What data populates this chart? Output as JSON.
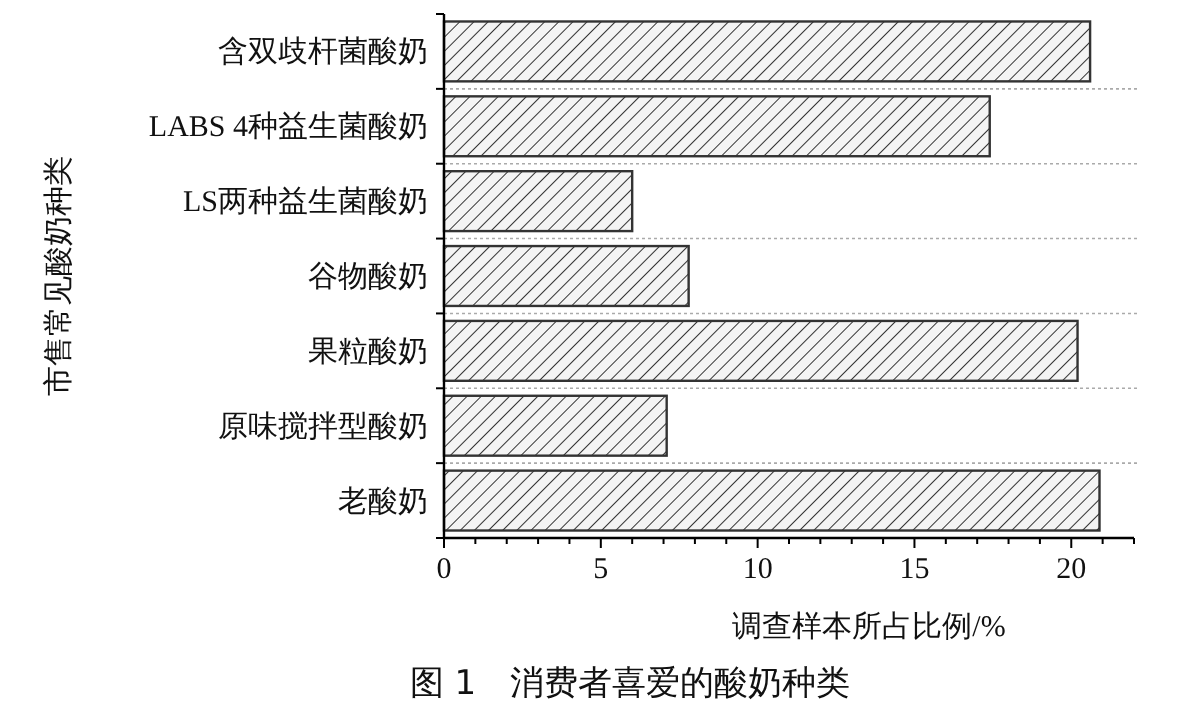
{
  "chart_data": {
    "type": "bar",
    "orientation": "horizontal",
    "title": "图 1　消费者喜爱的酸奶种类",
    "xlabel": "调查样本所占比例/%",
    "ylabel": "市售常见酸奶种类",
    "categories": [
      "含双歧杆菌酸奶",
      "LABS 4种益生菌酸奶",
      "LS两种益生菌酸奶",
      "谷物酸奶",
      "果粒酸奶",
      "原味搅拌型酸奶",
      "老酸奶"
    ],
    "values": [
      20.6,
      17.4,
      6.0,
      7.8,
      20.2,
      7.1,
      20.9
    ],
    "color": "#333333",
    "xlim": [
      0,
      22
    ],
    "xticks": [
      0,
      {
        "value": 1,
        "label": null
      },
      {
        "value": 2,
        "label": null
      },
      {
        "value": 3,
        "label": null
      },
      {
        "value": 4,
        "label": null
      },
      5,
      {
        "value": 6,
        "label": null
      },
      {
        "value": 7,
        "label": null
      },
      {
        "value": 8,
        "label": null
      },
      {
        "value": 9,
        "label": null
      },
      10,
      {
        "value": 11,
        "label": null
      },
      {
        "value": 12,
        "label": null
      },
      {
        "value": 13,
        "label": null
      },
      {
        "value": 14,
        "label": null
      },
      15,
      {
        "value": 16,
        "label": null
      },
      {
        "value": 17,
        "label": null
      },
      {
        "value": 18,
        "label": null
      },
      {
        "value": 19,
        "label": null
      },
      20,
      {
        "value": 21,
        "label": null
      },
      {
        "value": 22,
        "label": null
      }
    ],
    "grid": "y"
  }
}
